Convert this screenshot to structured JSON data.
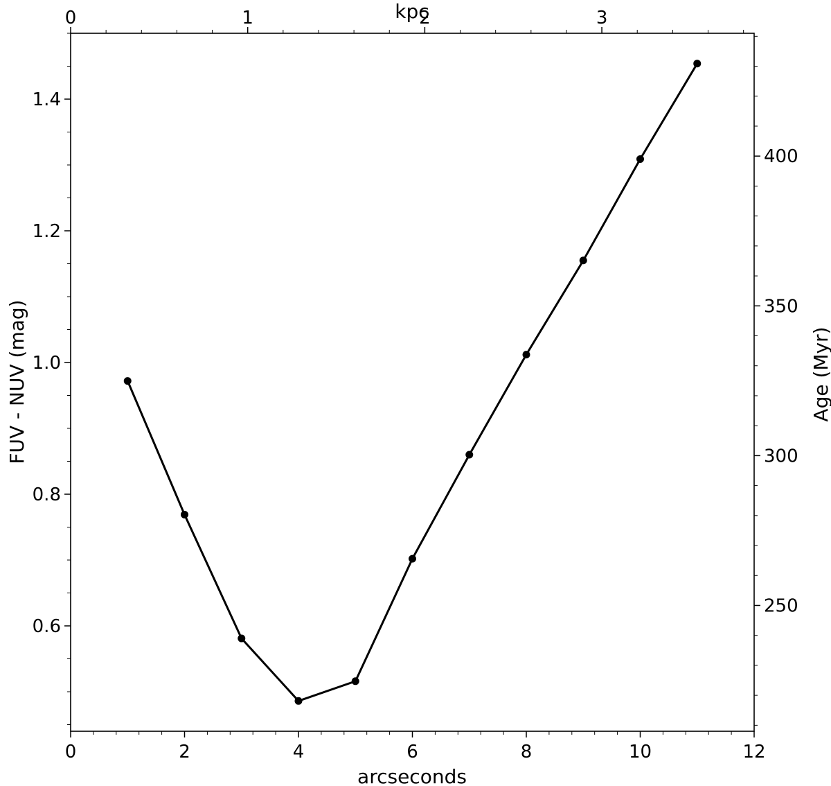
{
  "chart_data": {
    "type": "line",
    "xlabel": "arcseconds",
    "ylabel": "FUV - NUV (mag)",
    "top_xlabel": "kpc",
    "right_ylabel": "Age (Myr)",
    "xlim": [
      0,
      12
    ],
    "ylim": [
      0.44,
      1.5
    ],
    "top_xlim": [
      0,
      3.86
    ],
    "right_ylim": [
      208,
      441
    ],
    "x_ticks": [
      0,
      2,
      4,
      6,
      8,
      10,
      12
    ],
    "x_ticklabels": [
      "0",
      "2",
      "4",
      "6",
      "8",
      "10",
      "12"
    ],
    "y_ticks": [
      0.6,
      0.8,
      1.0,
      1.2,
      1.4
    ],
    "y_ticklabels": [
      "0.6",
      "0.8",
      "1.0",
      "1.2",
      "1.4"
    ],
    "top_ticks": [
      0,
      1,
      2,
      3
    ],
    "top_ticklabels": [
      "0",
      "1",
      "2",
      "3"
    ],
    "right_ticks": [
      250,
      300,
      350,
      400
    ],
    "right_ticklabels": [
      "250",
      "300",
      "350",
      "400"
    ],
    "grid": false,
    "line_color": "#000000",
    "series": [
      {
        "x": [
          1,
          2,
          3,
          4,
          5,
          6,
          7,
          8,
          9,
          10,
          11
        ],
        "y": [
          0.972,
          0.769,
          0.581,
          0.486,
          0.516,
          0.702,
          0.86,
          1.012,
          1.155,
          1.309,
          1.454
        ]
      }
    ]
  }
}
